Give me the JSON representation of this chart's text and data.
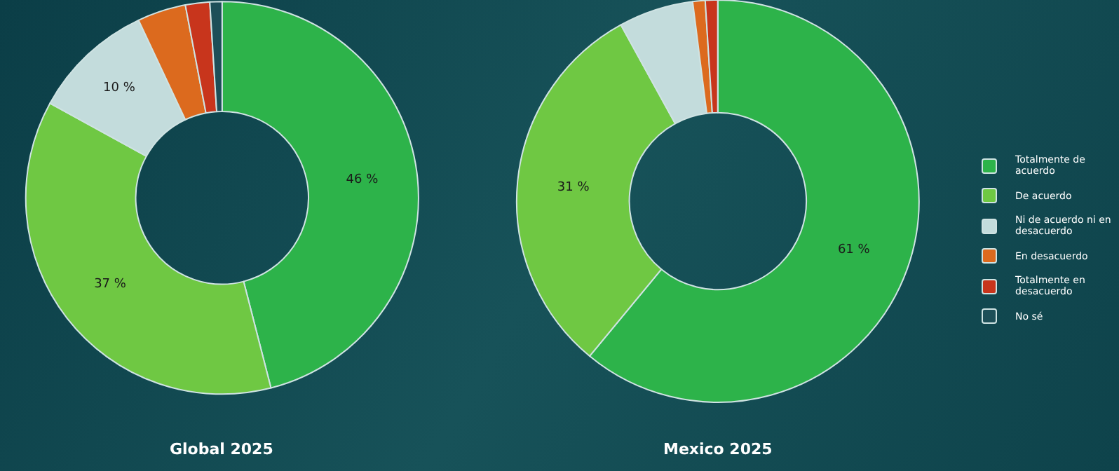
{
  "chart_data": {
    "type": "donut",
    "categories": [
      "Totalmente de acuerdo",
      "De acuerdo",
      "Ni de acuerdo ni en desacuerdo",
      "En desacuerdo",
      "Totalmente en desacuerdo",
      "No sé"
    ],
    "colors": [
      "#2db34a",
      "#6fc843",
      "#c3dcdc",
      "#dc6a1e",
      "#c8351c",
      "#1d4f58"
    ],
    "legend": "right",
    "series": [
      {
        "name": "Global 2025",
        "values": [
          46,
          37,
          10,
          4,
          2,
          1
        ],
        "value_labels": [
          "46 %",
          "37 %",
          "10 %",
          null,
          null,
          null
        ]
      },
      {
        "name": "Mexico 2025",
        "values": [
          61,
          31,
          6,
          1,
          1,
          0
        ],
        "value_labels": [
          "61 %",
          "31 %",
          null,
          null,
          null,
          null
        ]
      }
    ]
  }
}
